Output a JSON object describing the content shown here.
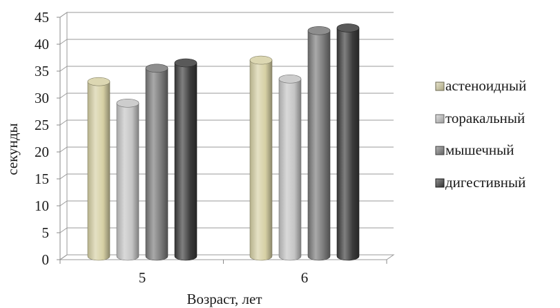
{
  "chart_data": {
    "type": "bar",
    "style": "3d-cylinder",
    "categories": [
      "5",
      "6"
    ],
    "series": [
      {
        "name": "астеноидный",
        "values": [
          32.5,
          36.5
        ],
        "color": "#d6d0a4"
      },
      {
        "name": "торакальный",
        "values": [
          28.5,
          33.0
        ],
        "color": "#c4c4c4"
      },
      {
        "name": "мышечный",
        "values": [
          35.0,
          42.0
        ],
        "color": "#7a7a7a"
      },
      {
        "name": "дигестивный",
        "values": [
          36.0,
          42.5
        ],
        "color": "#3c3c3c"
      }
    ],
    "xlabel": "Возраст, лет",
    "ylabel": "секунды",
    "ylim": [
      0,
      45
    ],
    "yticks": [
      "0",
      "5",
      "10",
      "15",
      "20",
      "25",
      "30",
      "35",
      "40",
      "45"
    ],
    "grid": true,
    "legend_position": "right"
  }
}
